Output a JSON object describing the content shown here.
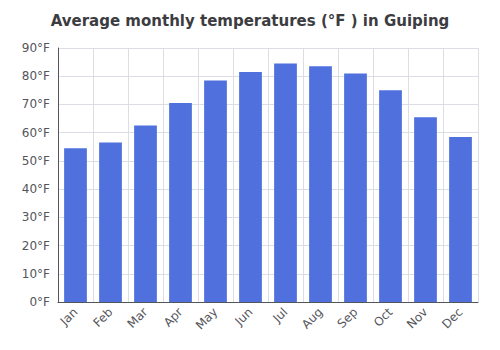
{
  "chart_data": {
    "type": "bar",
    "title": "Average monthly temperatures (°F ) in Guiping",
    "categories": [
      "Jan",
      "Feb",
      "Mar",
      "Apr",
      "May",
      "Jun",
      "Jul",
      "Aug",
      "Sep",
      "Oct",
      "Nov",
      "Dec"
    ],
    "values": [
      54.5,
      56.5,
      62.5,
      70.5,
      78.5,
      81.5,
      84.5,
      83.5,
      81.0,
      75.0,
      65.5,
      58.5
    ],
    "ylim": [
      0,
      90
    ],
    "yticks": [
      {
        "value": 0,
        "label": "0°F"
      },
      {
        "value": 10,
        "label": "10°F"
      },
      {
        "value": 20,
        "label": "20°F"
      },
      {
        "value": 30,
        "label": "30°F"
      },
      {
        "value": 40,
        "label": "40°F"
      },
      {
        "value": 50,
        "label": "50°F"
      },
      {
        "value": 60,
        "label": "60°F"
      },
      {
        "value": 70,
        "label": "70°F"
      },
      {
        "value": 80,
        "label": "80°F"
      },
      {
        "value": 90,
        "label": "90°F"
      }
    ],
    "grid": true
  }
}
